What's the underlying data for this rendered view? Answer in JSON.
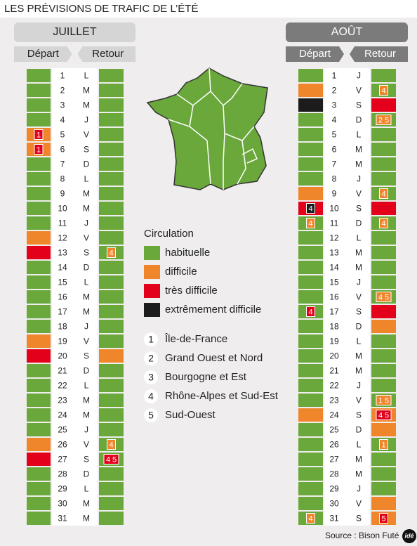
{
  "title": "LES PRÉVISIONS DE TRAFIC DE L’ÉTÉ",
  "legend": {
    "title": "Circulation",
    "levels": [
      {
        "label": "habituelle",
        "color": "#6aa83b"
      },
      {
        "label": "difficile",
        "color": "#f0862b"
      },
      {
        "label": "très difficile",
        "color": "#e3001b"
      },
      {
        "label": "extrêmement difficile",
        "color": "#1c1c1c"
      }
    ]
  },
  "regions": [
    {
      "number": 1,
      "label": "Île-de-France"
    },
    {
      "number": 2,
      "label": "Grand Ouest et Nord"
    },
    {
      "number": 3,
      "label": "Bourgogne et Est"
    },
    {
      "number": 4,
      "label": "Rhône-Alpes et Sud-Est"
    },
    {
      "number": 5,
      "label": "Sud-Ouest"
    }
  ],
  "months": [
    {
      "name": "JUILLET",
      "depart_label": "Départ",
      "retour_label": "Retour",
      "days": [
        {
          "n": 1,
          "d": "L",
          "dep": 0,
          "ret": 0
        },
        {
          "n": 2,
          "d": "M",
          "dep": 0,
          "ret": 0
        },
        {
          "n": 3,
          "d": "M",
          "dep": 0,
          "ret": 0
        },
        {
          "n": 4,
          "d": "J",
          "dep": 0,
          "ret": 0
        },
        {
          "n": 5,
          "d": "V",
          "dep": 1,
          "ret": 0,
          "dep_badge": {
            "level": 2,
            "regions": [
              1
            ]
          }
        },
        {
          "n": 6,
          "d": "S",
          "dep": 1,
          "ret": 0,
          "dep_badge": {
            "level": 2,
            "regions": [
              1
            ]
          }
        },
        {
          "n": 7,
          "d": "D",
          "dep": 0,
          "ret": 0
        },
        {
          "n": 8,
          "d": "L",
          "dep": 0,
          "ret": 0
        },
        {
          "n": 9,
          "d": "M",
          "dep": 0,
          "ret": 0
        },
        {
          "n": 10,
          "d": "M",
          "dep": 0,
          "ret": 0
        },
        {
          "n": 11,
          "d": "J",
          "dep": 0,
          "ret": 0
        },
        {
          "n": 12,
          "d": "V",
          "dep": 1,
          "ret": 0
        },
        {
          "n": 13,
          "d": "S",
          "dep": 2,
          "ret": 0,
          "ret_badge": {
            "level": 1,
            "regions": [
              4
            ]
          }
        },
        {
          "n": 14,
          "d": "D",
          "dep": 0,
          "ret": 0
        },
        {
          "n": 15,
          "d": "L",
          "dep": 0,
          "ret": 0
        },
        {
          "n": 16,
          "d": "M",
          "dep": 0,
          "ret": 0
        },
        {
          "n": 17,
          "d": "M",
          "dep": 0,
          "ret": 0
        },
        {
          "n": 18,
          "d": "J",
          "dep": 0,
          "ret": 0
        },
        {
          "n": 19,
          "d": "V",
          "dep": 1,
          "ret": 0
        },
        {
          "n": 20,
          "d": "S",
          "dep": 2,
          "ret": 1
        },
        {
          "n": 21,
          "d": "D",
          "dep": 0,
          "ret": 0
        },
        {
          "n": 22,
          "d": "L",
          "dep": 0,
          "ret": 0
        },
        {
          "n": 23,
          "d": "M",
          "dep": 0,
          "ret": 0
        },
        {
          "n": 24,
          "d": "M",
          "dep": 0,
          "ret": 0
        },
        {
          "n": 25,
          "d": "J",
          "dep": 0,
          "ret": 0
        },
        {
          "n": 26,
          "d": "V",
          "dep": 1,
          "ret": 0,
          "ret_badge": {
            "level": 1,
            "regions": [
              4
            ]
          }
        },
        {
          "n": 27,
          "d": "S",
          "dep": 2,
          "ret": 0,
          "ret_badge": {
            "level": 2,
            "regions": [
              4,
              5
            ]
          }
        },
        {
          "n": 28,
          "d": "D",
          "dep": 0,
          "ret": 0
        },
        {
          "n": 29,
          "d": "L",
          "dep": 0,
          "ret": 0
        },
        {
          "n": 30,
          "d": "M",
          "dep": 0,
          "ret": 0
        },
        {
          "n": 31,
          "d": "M",
          "dep": 0,
          "ret": 0
        }
      ]
    },
    {
      "name": "AOÛT",
      "depart_label": "Départ",
      "retour_label": "Retour",
      "days": [
        {
          "n": 1,
          "d": "J",
          "dep": 0,
          "ret": 0
        },
        {
          "n": 2,
          "d": "V",
          "dep": 1,
          "ret": 0,
          "ret_badge": {
            "level": 1,
            "regions": [
              4
            ]
          }
        },
        {
          "n": 3,
          "d": "S",
          "dep": 3,
          "ret": 2
        },
        {
          "n": 4,
          "d": "D",
          "dep": 0,
          "ret": 0,
          "ret_badge": {
            "level": 1,
            "regions": [
              2,
              5
            ]
          }
        },
        {
          "n": 5,
          "d": "L",
          "dep": 0,
          "ret": 0
        },
        {
          "n": 6,
          "d": "M",
          "dep": 0,
          "ret": 0
        },
        {
          "n": 7,
          "d": "M",
          "dep": 0,
          "ret": 0
        },
        {
          "n": 8,
          "d": "J",
          "dep": 0,
          "ret": 0
        },
        {
          "n": 9,
          "d": "V",
          "dep": 1,
          "ret": 0,
          "ret_badge": {
            "level": 1,
            "regions": [
              4
            ]
          }
        },
        {
          "n": 10,
          "d": "S",
          "dep": 2,
          "ret": 2,
          "dep_badge": {
            "level": 3,
            "regions": [
              4
            ]
          }
        },
        {
          "n": 11,
          "d": "D",
          "dep": 0,
          "ret": 0,
          "dep_badge": {
            "level": 1,
            "regions": [
              4
            ]
          },
          "ret_badge": {
            "level": 1,
            "regions": [
              4
            ]
          }
        },
        {
          "n": 12,
          "d": "L",
          "dep": 0,
          "ret": 0
        },
        {
          "n": 13,
          "d": "M",
          "dep": 0,
          "ret": 0
        },
        {
          "n": 14,
          "d": "M",
          "dep": 0,
          "ret": 0
        },
        {
          "n": 15,
          "d": "J",
          "dep": 0,
          "ret": 0
        },
        {
          "n": 16,
          "d": "V",
          "dep": 0,
          "ret": 0,
          "ret_badge": {
            "level": 1,
            "regions": [
              4,
              5
            ]
          }
        },
        {
          "n": 17,
          "d": "S",
          "dep": 0,
          "ret": 2,
          "dep_badge": {
            "level": 2,
            "regions": [
              4
            ]
          }
        },
        {
          "n": 18,
          "d": "D",
          "dep": 0,
          "ret": 1
        },
        {
          "n": 19,
          "d": "L",
          "dep": 0,
          "ret": 0
        },
        {
          "n": 20,
          "d": "M",
          "dep": 0,
          "ret": 0
        },
        {
          "n": 21,
          "d": "M",
          "dep": 0,
          "ret": 0
        },
        {
          "n": 22,
          "d": "J",
          "dep": 0,
          "ret": 0
        },
        {
          "n": 23,
          "d": "V",
          "dep": 0,
          "ret": 0,
          "ret_badge": {
            "level": 1,
            "regions": [
              1,
              5
            ]
          }
        },
        {
          "n": 24,
          "d": "S",
          "dep": 1,
          "ret": 1,
          "ret_badge": {
            "level": 2,
            "regions": [
              4,
              5
            ]
          }
        },
        {
          "n": 25,
          "d": "D",
          "dep": 0,
          "ret": 1
        },
        {
          "n": 26,
          "d": "L",
          "dep": 0,
          "ret": 0,
          "ret_badge": {
            "level": 1,
            "regions": [
              1
            ]
          }
        },
        {
          "n": 27,
          "d": "M",
          "dep": 0,
          "ret": 0
        },
        {
          "n": 28,
          "d": "M",
          "dep": 0,
          "ret": 0
        },
        {
          "n": 29,
          "d": "J",
          "dep": 0,
          "ret": 0
        },
        {
          "n": 30,
          "d": "V",
          "dep": 0,
          "ret": 1
        },
        {
          "n": 31,
          "d": "S",
          "dep": 0,
          "ret": 1,
          "dep_badge": {
            "level": 1,
            "regions": [
              4
            ]
          },
          "ret_badge": {
            "level": 2,
            "regions": [
              5
            ]
          }
        }
      ]
    }
  ],
  "source": "Source : Bison Futé",
  "logo": "idé"
}
